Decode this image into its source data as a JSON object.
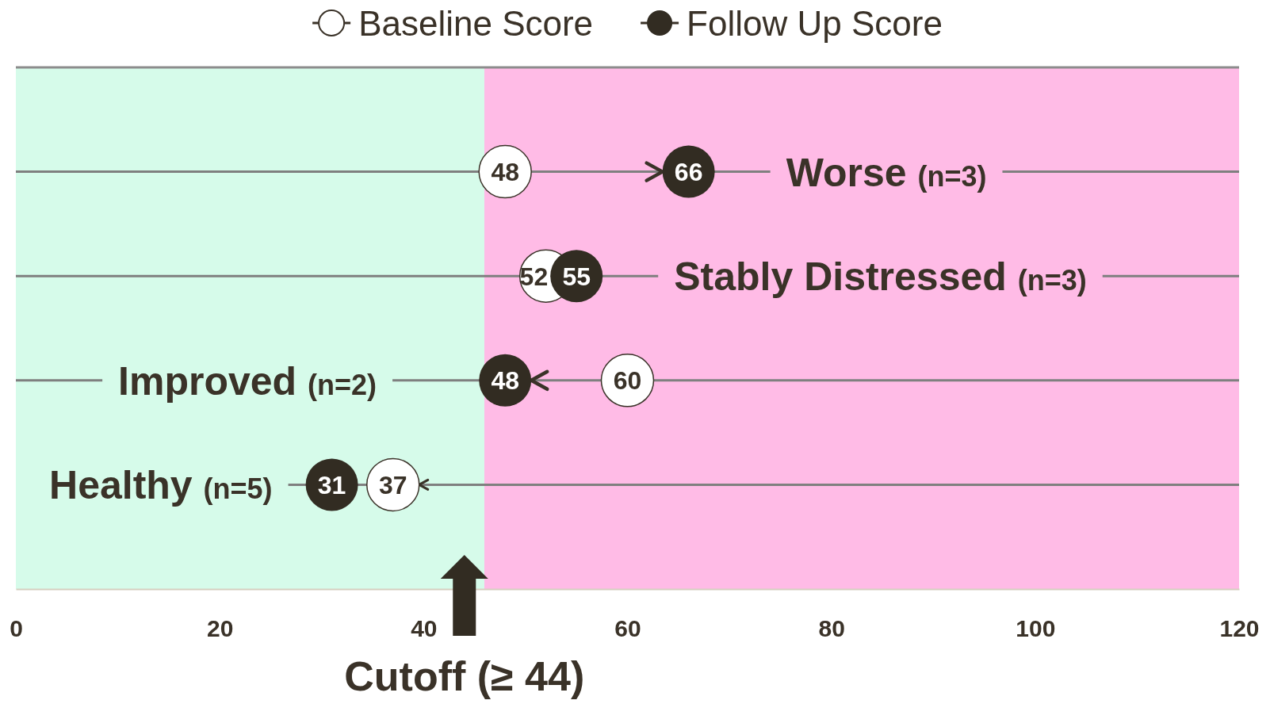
{
  "chart_data": {
    "type": "scatter",
    "orientation": "horizontal",
    "legend": "top",
    "marker": "circle",
    "data_labels": true,
    "grid": "y",
    "categories": [
      "Worse (n=3)",
      "Stably Distressed (n=3)",
      "Improved (n=2)",
      "Healthy (n=5)"
    ],
    "series": [
      {
        "name": "Baseline Score",
        "color": "#ffffff",
        "values": [
          48,
          52,
          60,
          37
        ]
      },
      {
        "name": "Follow Up Score",
        "color": "#322c22",
        "values": [
          66,
          55,
          48,
          31
        ]
      }
    ],
    "xlim": [
      0,
      120
    ],
    "xticks": [
      0,
      20,
      40,
      60,
      80,
      100,
      120
    ],
    "bands": [
      {
        "axis": "x",
        "from": 0,
        "to": 46,
        "color": "#d6fbea"
      },
      {
        "axis": "x",
        "from": 46,
        "to": 120,
        "color": "#ffbbe6"
      }
    ],
    "ref_lines": [
      {
        "axis": "x",
        "value": 44,
        "label": "Cutoff (≥ 44)",
        "color": "#322c22"
      }
    ]
  }
}
